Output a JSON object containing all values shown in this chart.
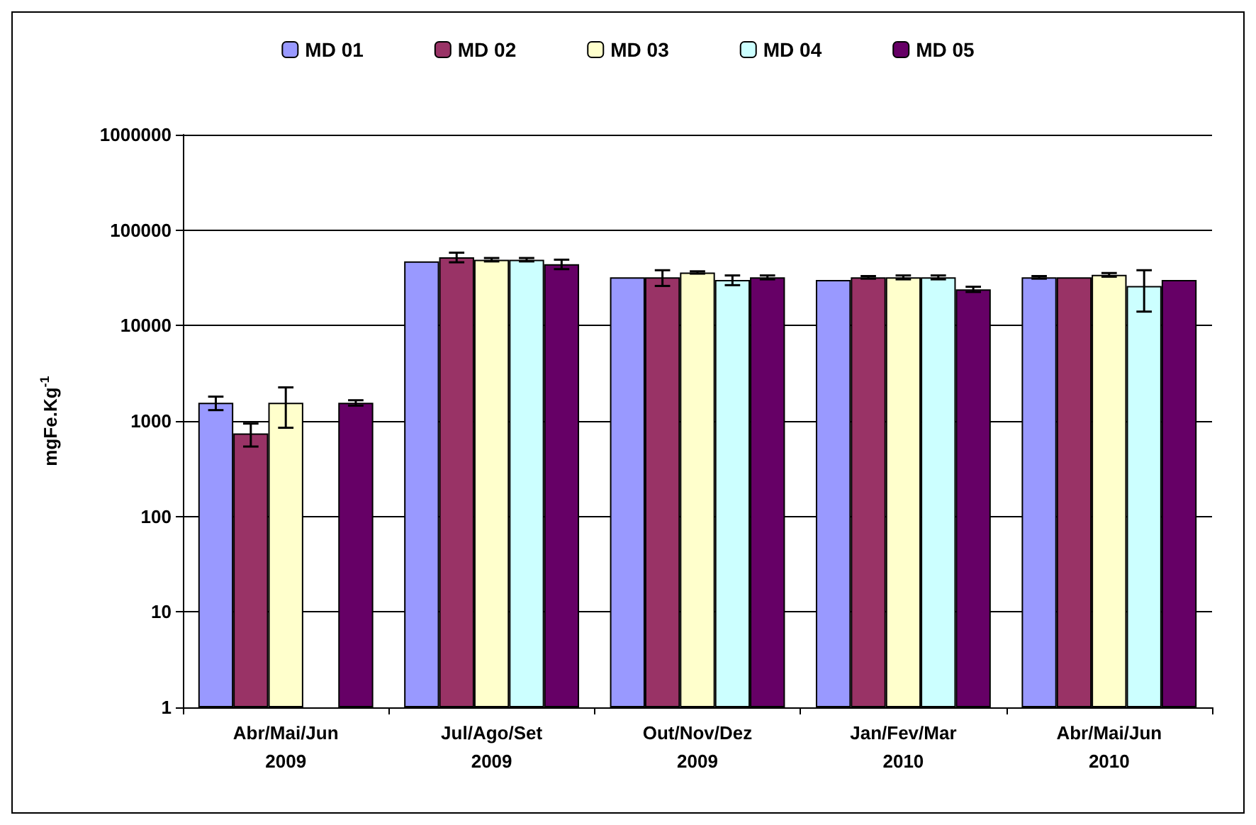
{
  "chart_data": {
    "type": "bar",
    "ylabel": "mgFe.Kg$^{-1}$",
    "categories": [
      "Abr/Mai/Jun\n2009",
      "Jul/Ago/Set\n2009",
      "Out/Nov/Dez\n2009",
      "Jan/Fev/Mar\n2010",
      "Abr/Mai/Jun\n2010"
    ],
    "series": [
      {
        "name": "MD 01",
        "color": "#9999ff",
        "values": [
          1550,
          47000,
          32000,
          30000,
          32000
        ],
        "errors": [
          250,
          null,
          null,
          null,
          1000
        ]
      },
      {
        "name": "MD 02",
        "color": "#993366",
        "values": [
          740,
          52000,
          32000,
          32000,
          32000
        ],
        "errors": [
          200,
          6000,
          6000,
          1000,
          null
        ]
      },
      {
        "name": "MD 03",
        "color": "#ffffcc",
        "values": [
          1550,
          49000,
          36000,
          32000,
          34000
        ],
        "errors": [
          700,
          2000,
          1000,
          1500,
          1500
        ]
      },
      {
        "name": "MD 04",
        "color": "#ccffff",
        "values": [
          null,
          49000,
          30000,
          32000,
          26000
        ],
        "errors": [
          null,
          2000,
          3500,
          1500,
          12000
        ]
      },
      {
        "name": "MD 05",
        "color": "#660066",
        "values": [
          1550,
          44000,
          32000,
          24000,
          30000
        ],
        "errors": [
          100,
          5000,
          1500,
          1500,
          null
        ]
      }
    ],
    "log": true,
    "ylim": [
      1,
      1000000
    ],
    "yticks": [
      1,
      10,
      100,
      1000,
      10000,
      100000,
      1000000
    ],
    "grid": "y",
    "legend": "top"
  }
}
